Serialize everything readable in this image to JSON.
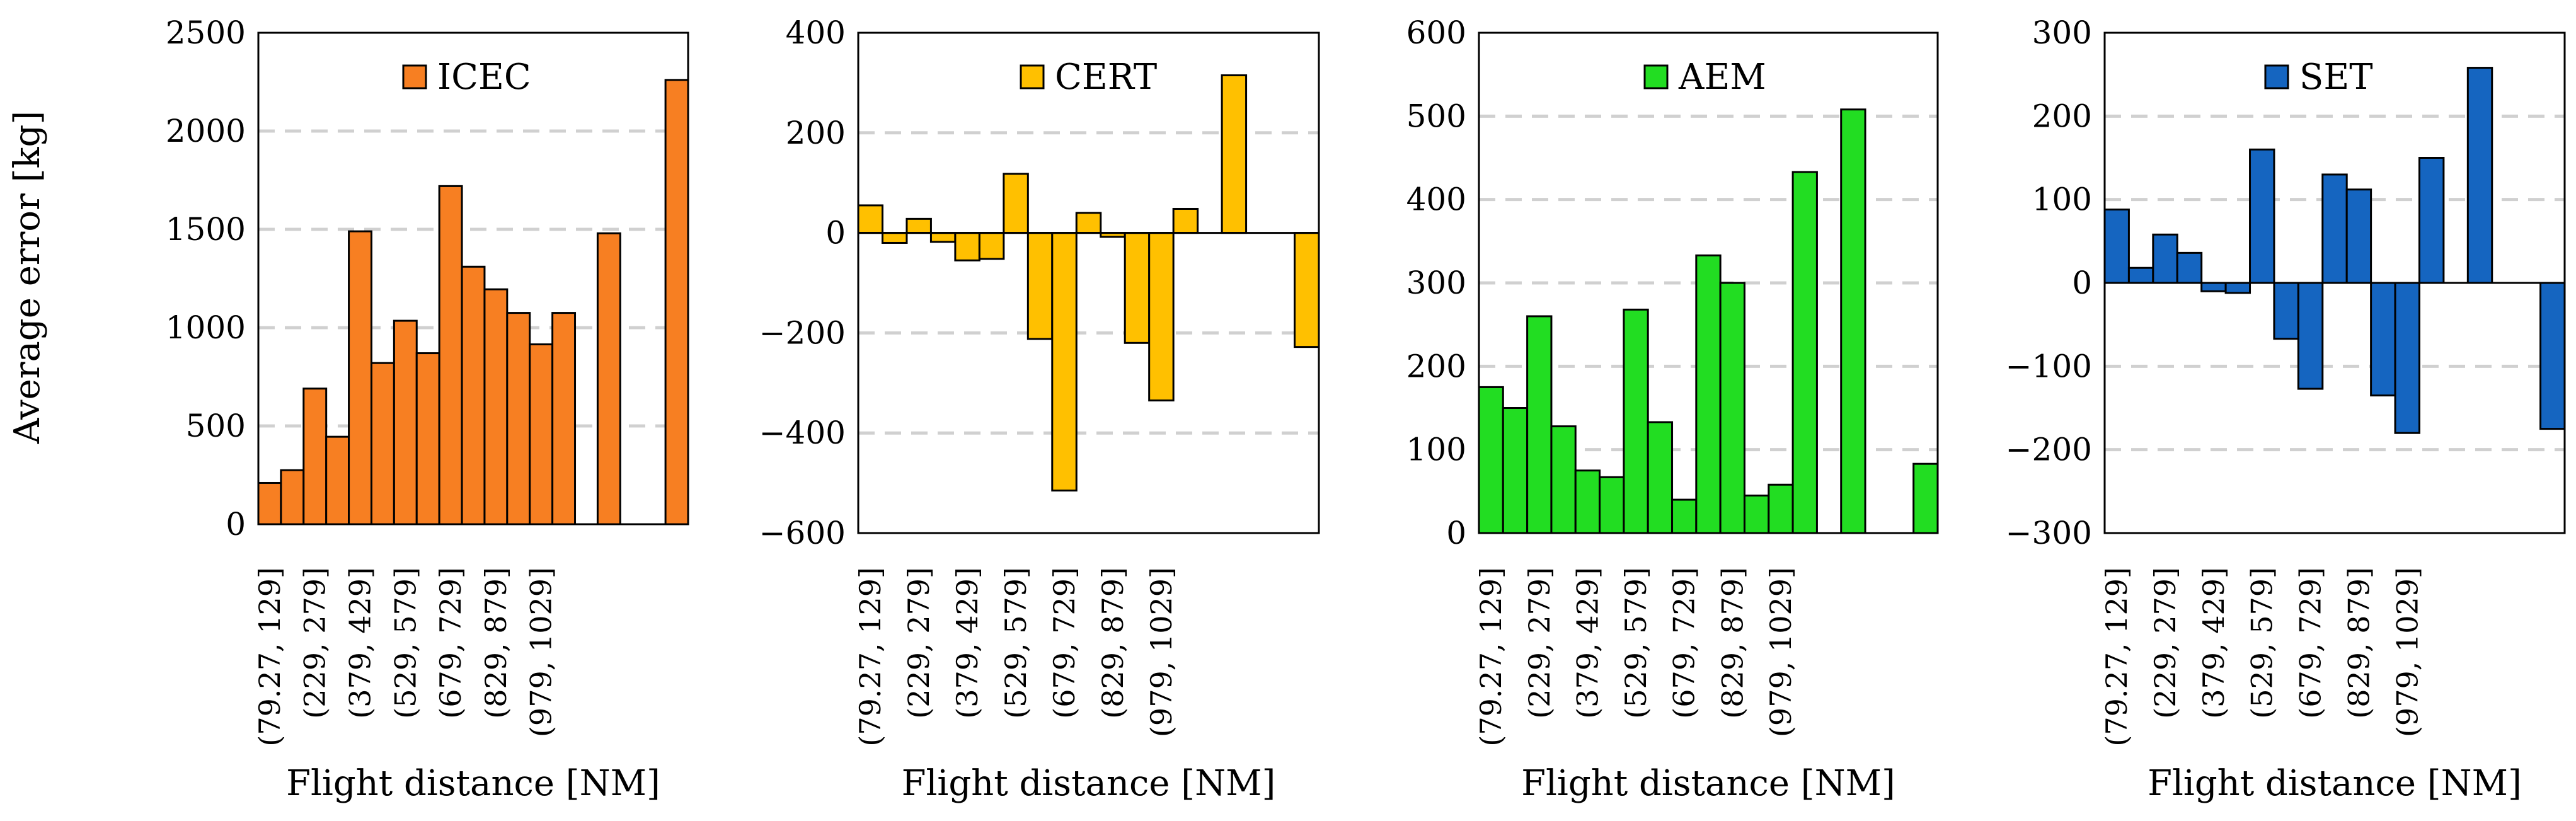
{
  "figure": {
    "ylabel": "Average error [kg]"
  },
  "chart_data": [
    {
      "type": "bar",
      "title": "",
      "series_name": "ICEC",
      "color": "#F77F22",
      "xlabel": "Flight distance [NM]",
      "ylabel": "Average error [kg]",
      "ylim": [
        0,
        2500
      ],
      "yticks": [
        0,
        500,
        1000,
        1500,
        2000,
        2500
      ],
      "tick_labels": [
        "(79.27, 129]",
        "(229, 279]",
        "(379, 429]",
        "(529, 579]",
        "(679, 729]",
        "(829, 879]",
        "(979, 1029]"
      ],
      "bin_count": 19,
      "values": [
        210,
        275,
        690,
        445,
        1490,
        820,
        1035,
        870,
        1720,
        1310,
        1195,
        1075,
        915,
        1075,
        null,
        1480,
        null,
        null,
        2260
      ]
    },
    {
      "type": "bar",
      "title": "",
      "series_name": "CERT",
      "color": "#FFC000",
      "xlabel": "Flight distance [NM]",
      "ylabel": "",
      "ylim": [
        -600,
        400
      ],
      "yticks": [
        -600,
        -400,
        -200,
        0,
        200,
        400
      ],
      "tick_labels": [
        "(79.27, 129]",
        "(229, 279]",
        "(379, 429]",
        "(529, 579]",
        "(679, 729]",
        "(829, 879]",
        "(979, 1029]"
      ],
      "bin_count": 19,
      "values": [
        55,
        -20,
        28,
        -18,
        -55,
        -52,
        118,
        -212,
        -515,
        40,
        -8,
        -220,
        -335,
        48,
        null,
        315,
        null,
        null,
        -228
      ]
    },
    {
      "type": "bar",
      "title": "",
      "series_name": "AEM",
      "color": "#22DD22",
      "xlabel": "Flight distance [NM]",
      "ylabel": "",
      "ylim": [
        0,
        600
      ],
      "yticks": [
        0,
        100,
        200,
        300,
        400,
        500,
        600
      ],
      "tick_labels": [
        "(79.27, 129]",
        "(229, 279]",
        "(379, 429]",
        "(529, 579]",
        "(679, 729]",
        "(829, 879]",
        "(979, 1029]"
      ],
      "bin_count": 19,
      "values": [
        175,
        150,
        260,
        128,
        75,
        67,
        268,
        133,
        40,
        333,
        300,
        45,
        58,
        433,
        null,
        508,
        null,
        null,
        83
      ]
    },
    {
      "type": "bar",
      "title": "",
      "series_name": "SET",
      "color": "#1565C0",
      "xlabel": "Flight distance [NM]",
      "ylabel": "",
      "ylim": [
        -300,
        300
      ],
      "yticks": [
        -300,
        -200,
        -100,
        0,
        100,
        200,
        300
      ],
      "tick_labels": [
        "(79.27, 129]",
        "(229, 279]",
        "(379, 429]",
        "(529, 579]",
        "(679, 729]",
        "(829, 879]",
        "(979, 1029]"
      ],
      "bin_count": 19,
      "values": [
        88,
        18,
        58,
        36,
        -10,
        -12,
        160,
        -67,
        -127,
        130,
        112,
        -135,
        -180,
        150,
        null,
        258,
        null,
        null,
        -175
      ]
    }
  ]
}
